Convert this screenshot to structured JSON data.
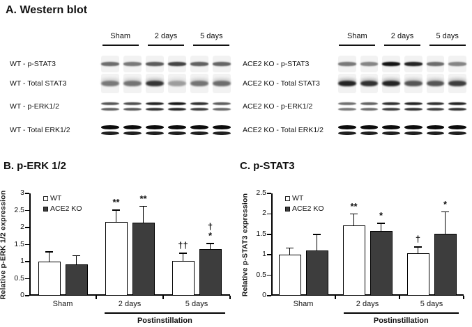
{
  "panel_a": {
    "title": "A. Western blot",
    "groups": [
      {
        "name": "WT",
        "col_headers": [
          "Sham",
          "2 days",
          "5 days"
        ],
        "rows": [
          {
            "label": "WT - p-STAT3",
            "band_style": "fuzzy",
            "lane_intensities": [
              0.55,
              0.5,
              0.62,
              0.72,
              0.6,
              0.58
            ]
          },
          {
            "label": "WT - Total STAT3",
            "band_style": "smear",
            "lane_intensities": [
              0.5,
              0.52,
              0.78,
              0.35,
              0.52,
              0.55
            ]
          },
          {
            "label": "WT - p-ERK1/2",
            "band_style": "double",
            "lane_intensities": [
              0.65,
              0.68,
              0.85,
              0.9,
              0.8,
              0.62
            ]
          },
          {
            "label": "WT - Total ERK1/2",
            "band_style": "thick",
            "lane_intensities": [
              0.95,
              0.95,
              0.95,
              0.95,
              0.95,
              0.95
            ]
          }
        ]
      },
      {
        "name": "ACE2 KO",
        "col_headers": [
          "Sham",
          "2 days",
          "5 days"
        ],
        "rows": [
          {
            "label": "ACE2 KO - p-STAT3",
            "band_style": "fuzzy",
            "lane_intensities": [
              0.5,
              0.45,
              0.92,
              0.85,
              0.55,
              0.45
            ]
          },
          {
            "label": "ACE2 KO - Total STAT3",
            "band_style": "smear",
            "lane_intensities": [
              0.85,
              0.8,
              0.85,
              0.65,
              0.65,
              0.75
            ]
          },
          {
            "label": "ACE2 KO - p-ERK1/2",
            "band_style": "double",
            "lane_intensities": [
              0.55,
              0.6,
              0.8,
              0.85,
              0.8,
              0.85
            ]
          },
          {
            "label": "ACE2 KO - Total ERK1/2",
            "band_style": "thick",
            "lane_intensities": [
              0.95,
              0.95,
              0.95,
              0.95,
              0.95,
              0.95
            ]
          }
        ]
      }
    ]
  },
  "chart_data": [
    {
      "type": "bar",
      "panel": "B",
      "title": "B. p-ERK 1/2",
      "ylabel": "Relative p-ERK 1/2 expression",
      "categories": [
        "Sham",
        "2 days",
        "5 days"
      ],
      "series": [
        {
          "name": "WT",
          "fill": "#ffffff",
          "values": [
            1.0,
            2.17,
            1.03
          ],
          "errors": [
            0.3,
            0.36,
            0.23
          ],
          "annotations": [
            "",
            "**",
            "††"
          ]
        },
        {
          "name": "ACE2 KO",
          "fill": "#3d3d3d",
          "values": [
            0.91,
            2.14,
            1.37
          ],
          "errors": [
            0.28,
            0.5,
            0.18
          ],
          "annotations": [
            "",
            "**",
            "†\n*"
          ]
        }
      ],
      "ylim": [
        0,
        3
      ],
      "ytick_step": 0.5,
      "grid": false,
      "legend_position": "top-left",
      "group_axis_label": "Postinstillation"
    },
    {
      "type": "bar",
      "panel": "C",
      "title": "C. p-STAT3",
      "ylabel": "Relative p-STAT3 expression",
      "categories": [
        "Sham",
        "2 days",
        "5 days"
      ],
      "series": [
        {
          "name": "WT",
          "fill": "#ffffff",
          "values": [
            1.0,
            1.71,
            1.04
          ],
          "errors": [
            0.18,
            0.3,
            0.16
          ],
          "annotations": [
            "",
            "**",
            "†"
          ]
        },
        {
          "name": "ACE2 KO",
          "fill": "#3d3d3d",
          "values": [
            1.1,
            1.58,
            1.51
          ],
          "errors": [
            0.41,
            0.2,
            0.55
          ],
          "annotations": [
            "",
            "*",
            "*"
          ]
        }
      ],
      "ylim": [
        0,
        2.5
      ],
      "ytick_step": 0.5,
      "grid": false,
      "legend_position": "top-left",
      "group_axis_label": "Postinstillation"
    }
  ],
  "colors": {
    "bar_wt_fill": "#ffffff",
    "bar_ko_fill": "#3d3d3d",
    "axis": "#000000",
    "text": "#111111"
  }
}
